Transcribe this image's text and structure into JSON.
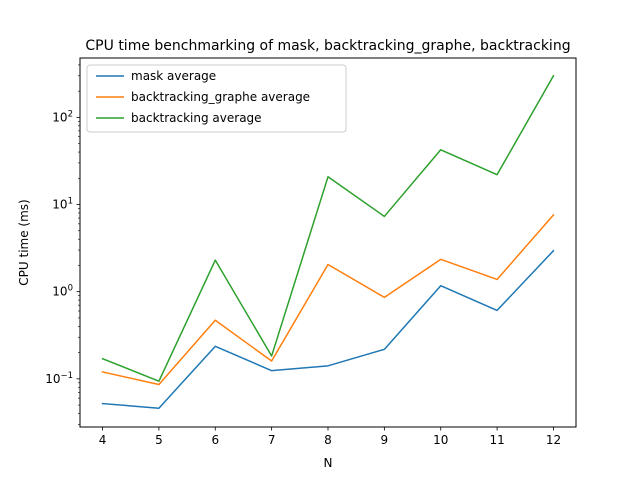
{
  "chart_data": {
    "type": "line",
    "title": "CPU time benchmarking of mask, backtracking_graphe, backtracking",
    "xlabel": "N",
    "ylabel": "CPU time (ms)",
    "yscale": "log",
    "x": [
      4,
      5,
      6,
      7,
      8,
      9,
      10,
      11,
      12
    ],
    "xticks": [
      "4",
      "5",
      "6",
      "7",
      "8",
      "9",
      "10",
      "11",
      "12"
    ],
    "yticks": [
      {
        "value": 0.1,
        "base": "10",
        "exp": "−1"
      },
      {
        "value": 1,
        "base": "10",
        "exp": "0"
      },
      {
        "value": 10,
        "base": "10",
        "exp": "1"
      },
      {
        "value": 100,
        "base": "10",
        "exp": "2"
      }
    ],
    "xlim": [
      3.6,
      12.4
    ],
    "ylim": [
      0.028,
      480
    ],
    "grid": false,
    "legend_position": "upper-left",
    "series": [
      {
        "name": "mask average",
        "color": "#1f77b4",
        "values": [
          0.052,
          0.046,
          0.236,
          0.124,
          0.141,
          0.218,
          1.17,
          0.61,
          2.95
        ]
      },
      {
        "name": "backtracking_graphe average",
        "color": "#ff7f0e",
        "values": [
          0.12,
          0.086,
          0.47,
          0.16,
          2.05,
          0.86,
          2.35,
          1.38,
          7.6
        ]
      },
      {
        "name": "backtracking average",
        "color": "#2ca02c",
        "values": [
          0.17,
          0.094,
          2.3,
          0.183,
          20.8,
          7.3,
          42.5,
          22.0,
          300.0
        ]
      }
    ]
  }
}
